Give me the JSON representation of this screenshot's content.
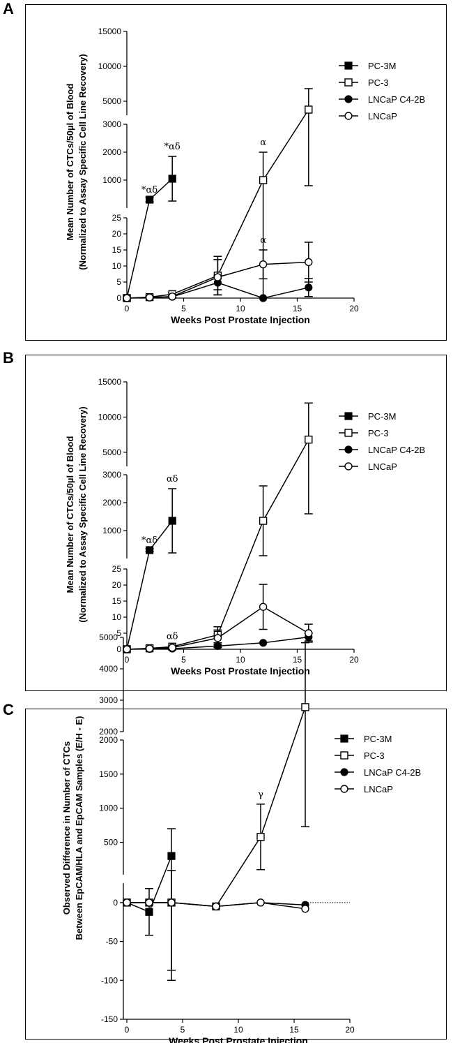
{
  "panels": [
    {
      "label": "A",
      "ylabel_line1": "Mean Number of CTCs/50µl of Blood",
      "ylabel_line2": "(Normalized to Assay Specific Cell Line Recovery)"
    },
    {
      "label": "B",
      "ylabel_line1": "Mean Number of CTCs/50µl of Blood",
      "ylabel_line2": "(Normalized to Assay Specific Cell Line Recovery)"
    },
    {
      "label": "C",
      "ylabel_line1": "Observed Difference in Number of CTCs",
      "ylabel_line2": "Between EpCAM/HLA and EpCAM Samples (E/H - E)"
    }
  ],
  "chart_data": [
    {
      "type": "line",
      "panel": "A",
      "title": "",
      "xlabel": "Weeks Post Prostate Injection",
      "ylabel": "Mean Number of CTCs/50µl of Blood (Normalized to Assay Specific Cell Line Recovery)",
      "xlim": [
        0,
        20
      ],
      "x_ticks": [
        "0",
        "5",
        "10",
        "15",
        "20"
      ],
      "y_segments": [
        {
          "range": [
            0,
            25
          ],
          "ticks": [
            "0",
            "5",
            "10",
            "15",
            "20",
            "25"
          ]
        },
        {
          "range": [
            0,
            3000
          ],
          "ticks": [
            "1000",
            "2000",
            "3000"
          ]
        },
        {
          "range": [
            3000,
            15000
          ],
          "ticks": [
            "5000",
            "10000",
            "15000"
          ]
        }
      ],
      "legend": [
        "PC-3M",
        "PC-3",
        "LNCaP C4-2B",
        "LNCaP"
      ],
      "series": [
        {
          "name": "PC-3M",
          "marker": "filled-square",
          "x": [
            0,
            2,
            4
          ],
          "y": [
            0,
            300,
            1050
          ],
          "err": [
            0,
            80,
            800
          ]
        },
        {
          "name": "PC-3",
          "marker": "open-square",
          "x": [
            0,
            2,
            4,
            8,
            12,
            16
          ],
          "y": [
            0,
            0.3,
            1.2,
            7,
            1000,
            3800
          ],
          "err": [
            0,
            0.3,
            0.5,
            6,
            1000,
            3000
          ]
        },
        {
          "name": "LNCaP C4-2B",
          "marker": "filled-circle",
          "x": [
            0,
            2,
            4,
            8,
            12,
            16
          ],
          "y": [
            0,
            0.2,
            0.4,
            4.8,
            0,
            3.3
          ],
          "err": [
            0,
            0.2,
            0.3,
            2.2,
            0,
            2.8
          ]
        },
        {
          "name": "LNCaP",
          "marker": "open-circle",
          "x": [
            0,
            2,
            4,
            8,
            12,
            16
          ],
          "y": [
            0,
            0.2,
            0.5,
            6.5,
            10.5,
            11.2
          ],
          "err": [
            0,
            0.2,
            0.3,
            5.5,
            4.5,
            6.2
          ]
        }
      ],
      "annotations": [
        {
          "text": "*αδ",
          "x": 2,
          "y": 300,
          "series": "PC-3M"
        },
        {
          "text": "*αδ",
          "x": 4,
          "y": 1850,
          "series": "PC-3M"
        },
        {
          "text": "α",
          "x": 12,
          "y": 2000,
          "series": "PC-3"
        },
        {
          "text": "α",
          "x": 12,
          "y": 15,
          "series": "LNCaP"
        }
      ]
    },
    {
      "type": "line",
      "panel": "B",
      "title": "",
      "xlabel": "Weeks Post Prostate Injection",
      "ylabel": "Mean Number of CTCs/50µl of Blood (Normalized to Assay Specific Cell Line Recovery)",
      "xlim": [
        0,
        20
      ],
      "x_ticks": [
        "0",
        "5",
        "10",
        "15",
        "20"
      ],
      "y_segments": [
        {
          "range": [
            0,
            25
          ],
          "ticks": [
            "0",
            "5",
            "10",
            "15",
            "20",
            "25"
          ]
        },
        {
          "range": [
            0,
            3000
          ],
          "ticks": [
            "1000",
            "2000",
            "3000"
          ]
        },
        {
          "range": [
            3000,
            15000
          ],
          "ticks": [
            "5000",
            "10000",
            "15000"
          ]
        }
      ],
      "legend": [
        "PC-3M",
        "PC-3",
        "LNCaP C4-2B",
        "LNCaP"
      ],
      "series": [
        {
          "name": "PC-3M",
          "marker": "filled-square",
          "x": [
            0,
            2,
            4
          ],
          "y": [
            0,
            300,
            1350
          ],
          "err": [
            0,
            50,
            1150
          ]
        },
        {
          "name": "PC-3",
          "marker": "open-square",
          "x": [
            0,
            2,
            4,
            8,
            12,
            16
          ],
          "y": [
            0,
            0.3,
            0.8,
            4.5,
            1350,
            6800
          ],
          "err": [
            0,
            0.3,
            0.4,
            2.5,
            1250,
            5200
          ]
        },
        {
          "name": "LNCaP C4-2B",
          "marker": "filled-circle",
          "x": [
            0,
            2,
            4,
            8,
            12,
            16
          ],
          "y": [
            0,
            0.1,
            0.2,
            1.0,
            2.0,
            3.8
          ],
          "err": [
            0,
            0.1,
            0.2,
            0.5,
            0,
            1.2
          ]
        },
        {
          "name": "LNCaP",
          "marker": "open-circle",
          "x": [
            0,
            2,
            4,
            8,
            12,
            16
          ],
          "y": [
            0,
            0.2,
            0.5,
            3.5,
            13.2,
            5.0
          ],
          "err": [
            0,
            0.2,
            0.3,
            2.5,
            7.0,
            2.8
          ]
        }
      ],
      "annotations": [
        {
          "text": "*αδ",
          "x": 2,
          "y": 300,
          "series": "PC-3M"
        },
        {
          "text": "αδ",
          "x": 4,
          "y": 2500,
          "series": "PC-3M"
        },
        {
          "text": "αδ",
          "x": 4,
          "y": 1,
          "series": "PC-3"
        }
      ]
    },
    {
      "type": "line",
      "panel": "C",
      "title": "",
      "xlabel": "Weeks Post Prostate Injection",
      "ylabel": "Observed Difference in Number of CTCs Between EpCAM/HLA and EpCAM Samples (E/H - E)",
      "xlim": [
        0,
        20
      ],
      "x_ticks": [
        "0",
        "5",
        "10",
        "15",
        "20"
      ],
      "y_segments": [
        {
          "range": [
            -150,
            25
          ],
          "ticks": [
            "-150",
            "-100",
            "-50",
            "0"
          ]
        },
        {
          "range": [
            25,
            2000
          ],
          "ticks": [
            "500",
            "1000",
            "1500",
            "2000"
          ]
        },
        {
          "range": [
            2000,
            5000
          ],
          "ticks": [
            "2000",
            "3000",
            "4000",
            "5000"
          ]
        }
      ],
      "reference_line": {
        "y": 0,
        "style": "dotted"
      },
      "legend": [
        "PC-3M",
        "PC-3",
        "LNCaP C4-2B",
        "LNCaP"
      ],
      "series": [
        {
          "name": "PC-3M",
          "marker": "filled-square",
          "x": [
            0,
            2,
            4
          ],
          "y": [
            0,
            -12,
            300
          ],
          "err": [
            0,
            30,
            400
          ]
        },
        {
          "name": "PC-3",
          "marker": "open-square",
          "x": [
            0,
            2,
            4,
            8,
            12,
            16
          ],
          "y": [
            0,
            0,
            0,
            -5,
            580,
            2780
          ],
          "err": [
            0,
            0,
            87,
            0,
            480,
            2050
          ]
        },
        {
          "name": "LNCaP C4-2B",
          "marker": "filled-circle",
          "x": [
            0,
            2,
            4,
            8,
            12,
            16
          ],
          "y": [
            0,
            0,
            0,
            -5,
            0,
            -3
          ],
          "err": [
            0,
            0,
            0,
            0,
            0,
            0
          ]
        },
        {
          "name": "LNCaP",
          "marker": "open-circle",
          "x": [
            0,
            2,
            4,
            8,
            12,
            16
          ],
          "y": [
            0,
            0,
            0,
            -5,
            0,
            -8
          ],
          "err": [
            0,
            0,
            0,
            0,
            0,
            0
          ]
        }
      ],
      "annotations": [
        {
          "text": "γ",
          "x": 12,
          "y": 1060,
          "series": "PC-3"
        }
      ]
    }
  ]
}
